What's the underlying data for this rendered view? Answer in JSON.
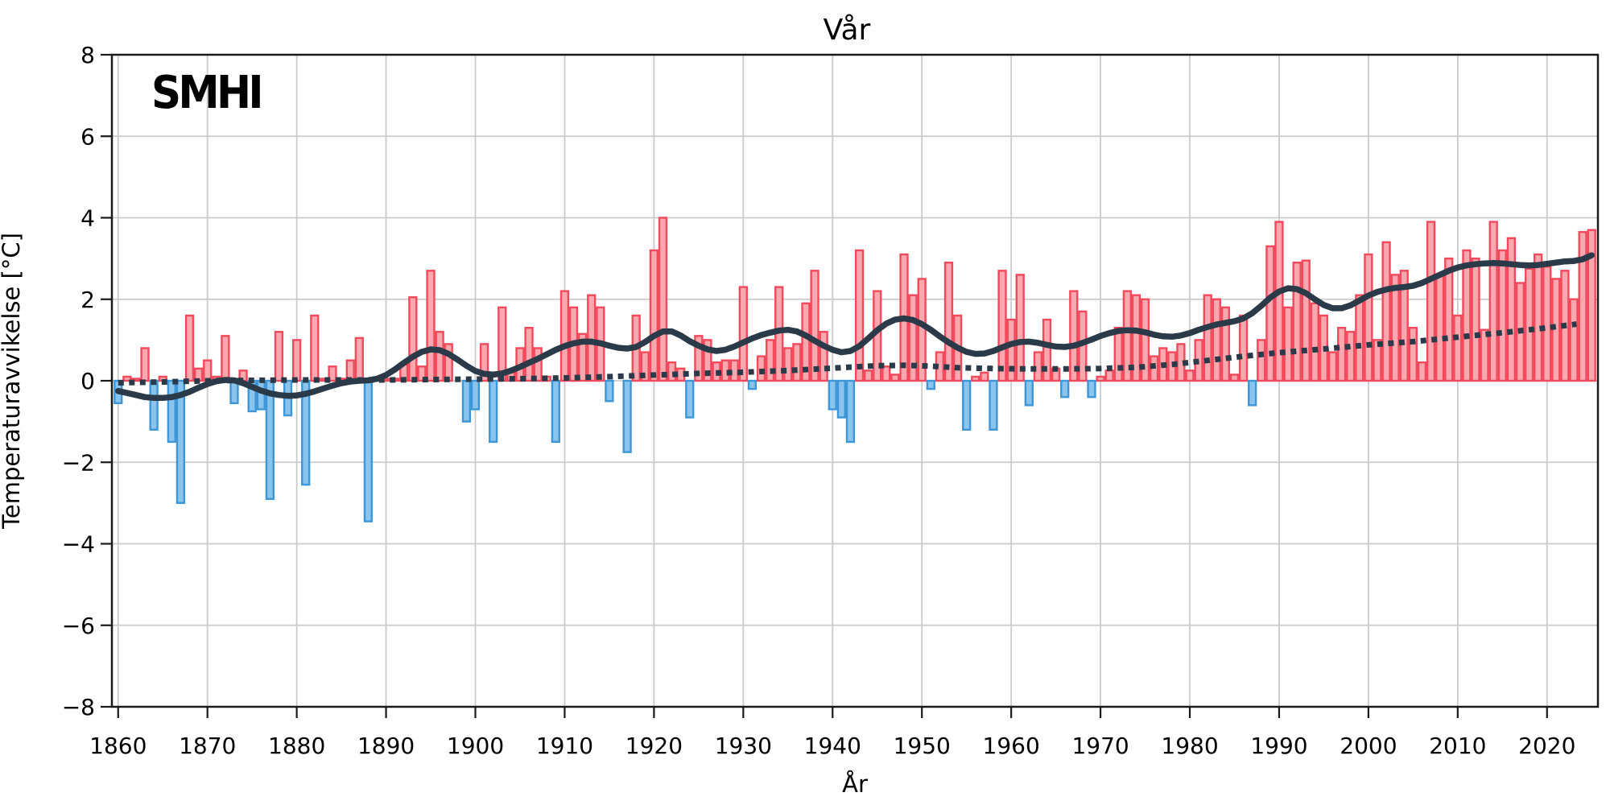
{
  "branding": {
    "logo_text": "SMHI"
  },
  "chart_data": {
    "type": "bar",
    "title": "Vår",
    "xlabel": "År",
    "ylabel": "Temperaturavvikelse [°C]",
    "xlim": [
      1859.3,
      2025.7
    ],
    "ylim": [
      -8,
      8
    ],
    "grid": true,
    "xticks": [
      1860,
      1870,
      1880,
      1890,
      1900,
      1910,
      1920,
      1930,
      1940,
      1950,
      1960,
      1970,
      1980,
      1990,
      2000,
      2010,
      2020
    ],
    "yticks": [
      -8,
      -6,
      -4,
      -2,
      0,
      2,
      4,
      6,
      8
    ],
    "ytick_labels": [
      "−8",
      "−6",
      "−4",
      "−2",
      "0",
      "2",
      "4",
      "6",
      "8"
    ],
    "bar_series": {
      "name": "Temperaturavvikelse per år",
      "year_start": 1860,
      "bar_width_years": 0.8,
      "values": [
        -0.55,
        0.1,
        0.05,
        0.8,
        -1.2,
        0.1,
        -1.5,
        -3.0,
        1.6,
        0.3,
        0.5,
        0.1,
        1.1,
        -0.55,
        0.25,
        -0.75,
        -0.7,
        -2.9,
        1.2,
        -0.85,
        1.0,
        -2.55,
        1.6,
        0.05,
        0.35,
        0.05,
        0.5,
        1.05,
        -3.45,
        0.0,
        0.05,
        0.05,
        0.4,
        2.05,
        0.35,
        2.7,
        1.2,
        0.9,
        0.0,
        -1.0,
        -0.7,
        0.9,
        -1.5,
        1.8,
        0.2,
        0.8,
        1.3,
        0.8,
        0.1,
        -1.5,
        2.2,
        1.8,
        1.15,
        2.1,
        1.8,
        -0.5,
        0.0,
        -1.75,
        1.6,
        0.7,
        3.2,
        4.0,
        0.45,
        0.3,
        -0.9,
        1.1,
        1.0,
        0.45,
        0.5,
        0.5,
        2.3,
        -0.2,
        0.6,
        1.0,
        2.3,
        0.8,
        0.9,
        1.9,
        2.7,
        1.2,
        -0.7,
        -0.9,
        -1.5,
        3.2,
        0.25,
        2.2,
        0.35,
        0.15,
        3.1,
        2.1,
        2.5,
        -0.2,
        0.7,
        2.9,
        1.6,
        -1.2,
        0.1,
        0.2,
        -1.2,
        2.7,
        1.5,
        2.6,
        -0.6,
        0.7,
        1.5,
        0.3,
        -0.4,
        2.2,
        1.7,
        -0.4,
        0.1,
        0.25,
        1.3,
        2.2,
        2.1,
        2.0,
        0.6,
        0.8,
        0.7,
        0.9,
        0.25,
        1.0,
        2.1,
        2.0,
        1.8,
        0.15,
        1.6,
        -0.6,
        1.0,
        3.3,
        3.9,
        1.8,
        2.9,
        2.95,
        1.9,
        1.6,
        0.7,
        1.3,
        1.2,
        2.1,
        3.1,
        1.0,
        3.4,
        2.6,
        2.7,
        1.3,
        0.45,
        3.9,
        2.6,
        3.0,
        1.6,
        3.2,
        3.0,
        1.25,
        3.9,
        3.2,
        3.5,
        2.4,
        2.75,
        3.1,
        2.8,
        2.5,
        2.7,
        2.0,
        3.65,
        3.7
      ]
    },
    "line_series": [
      {
        "name": "utjämnad kurva",
        "style": "solid",
        "year_start": 1860,
        "values": [
          -0.25,
          -0.3,
          -0.35,
          -0.4,
          -0.42,
          -0.42,
          -0.4,
          -0.35,
          -0.27,
          -0.17,
          -0.08,
          -0.01,
          0.02,
          0.01,
          -0.06,
          -0.15,
          -0.24,
          -0.31,
          -0.35,
          -0.37,
          -0.36,
          -0.32,
          -0.26,
          -0.19,
          -0.12,
          -0.06,
          -0.02,
          0.0,
          0.01,
          0.05,
          0.14,
          0.28,
          0.44,
          0.59,
          0.71,
          0.77,
          0.75,
          0.66,
          0.52,
          0.37,
          0.24,
          0.17,
          0.15,
          0.18,
          0.25,
          0.34,
          0.44,
          0.54,
          0.65,
          0.76,
          0.85,
          0.92,
          0.96,
          0.96,
          0.92,
          0.86,
          0.81,
          0.79,
          0.83,
          0.95,
          1.1,
          1.21,
          1.21,
          1.11,
          0.97,
          0.86,
          0.77,
          0.73,
          0.76,
          0.84,
          0.94,
          1.04,
          1.12,
          1.18,
          1.23,
          1.25,
          1.21,
          1.11,
          0.98,
          0.86,
          0.76,
          0.7,
          0.73,
          0.85,
          1.04,
          1.24,
          1.4,
          1.5,
          1.53,
          1.49,
          1.39,
          1.25,
          1.09,
          0.94,
          0.81,
          0.71,
          0.66,
          0.67,
          0.73,
          0.82,
          0.9,
          0.95,
          0.96,
          0.93,
          0.88,
          0.84,
          0.83,
          0.86,
          0.93,
          1.01,
          1.1,
          1.17,
          1.22,
          1.24,
          1.23,
          1.19,
          1.13,
          1.09,
          1.08,
          1.11,
          1.17,
          1.25,
          1.32,
          1.38,
          1.42,
          1.46,
          1.53,
          1.66,
          1.84,
          2.04,
          2.19,
          2.27,
          2.25,
          2.15,
          2.0,
          1.86,
          1.78,
          1.78,
          1.85,
          1.97,
          2.09,
          2.18,
          2.24,
          2.28,
          2.3,
          2.33,
          2.4,
          2.5,
          2.6,
          2.7,
          2.78,
          2.83,
          2.86,
          2.88,
          2.89,
          2.88,
          2.86,
          2.84,
          2.83,
          2.84,
          2.87,
          2.9,
          2.93,
          2.94,
          2.98,
          3.08
        ]
      },
      {
        "name": "trend",
        "style": "dotted",
        "points": [
          [
            1860,
            -0.05
          ],
          [
            1865,
            -0.03
          ],
          [
            1870,
            0.0
          ],
          [
            1875,
            0.01
          ],
          [
            1880,
            0.02
          ],
          [
            1885,
            0.02
          ],
          [
            1890,
            0.02
          ],
          [
            1895,
            0.03
          ],
          [
            1900,
            0.04
          ],
          [
            1905,
            0.05
          ],
          [
            1910,
            0.07
          ],
          [
            1915,
            0.1
          ],
          [
            1920,
            0.14
          ],
          [
            1925,
            0.18
          ],
          [
            1930,
            0.21
          ],
          [
            1935,
            0.25
          ],
          [
            1940,
            0.31
          ],
          [
            1945,
            0.37
          ],
          [
            1948,
            0.38
          ],
          [
            1951,
            0.36
          ],
          [
            1954,
            0.32
          ],
          [
            1958,
            0.3
          ],
          [
            1962,
            0.29
          ],
          [
            1966,
            0.29
          ],
          [
            1970,
            0.3
          ],
          [
            1974,
            0.33
          ],
          [
            1978,
            0.4
          ],
          [
            1982,
            0.5
          ],
          [
            1986,
            0.6
          ],
          [
            1990,
            0.69
          ],
          [
            1995,
            0.78
          ],
          [
            2000,
            0.88
          ],
          [
            2005,
            0.96
          ],
          [
            2010,
            1.07
          ],
          [
            2015,
            1.18
          ],
          [
            2020,
            1.3
          ],
          [
            2023.3,
            1.39
          ]
        ]
      }
    ],
    "colors": {
      "positive_fill": "#F9A8AF",
      "positive_edge": "#F2495C",
      "negative_fill": "#8AC4EC",
      "negative_edge": "#3D96D8",
      "line": "#2B3A48",
      "grid": "#CBCBCB",
      "spine": "#1A1A1A",
      "background": "#FFFFFF"
    }
  }
}
